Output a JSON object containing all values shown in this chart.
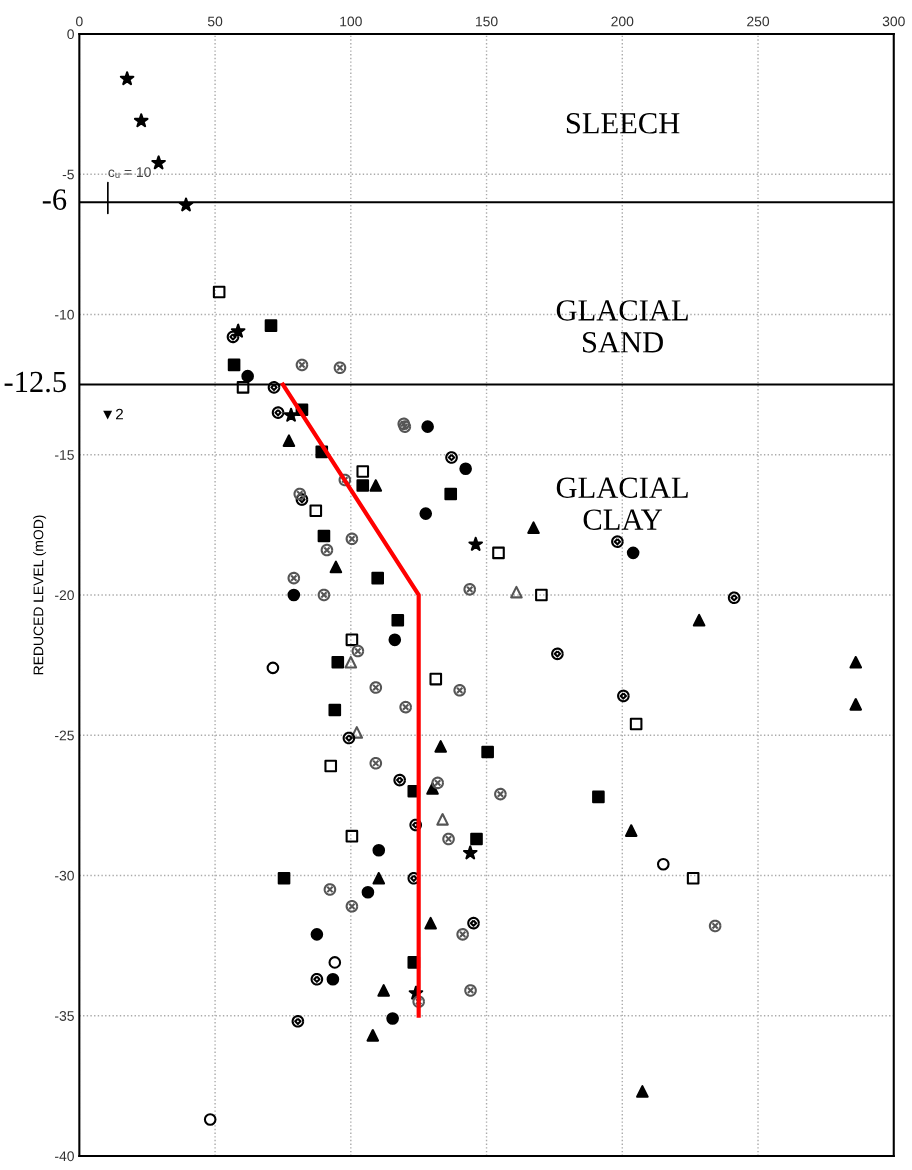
{
  "chart_data": {
    "type": "scatter",
    "ylabel": "REDUCED LEVEL (mOD)",
    "xlim": [
      0,
      300
    ],
    "xticks": [
      0,
      50,
      100,
      150,
      200,
      250,
      300
    ],
    "ylim": [
      -40,
      0
    ],
    "yticks": [
      0,
      -5,
      -10,
      -15,
      -20,
      -25,
      -30,
      -35,
      -40
    ],
    "grid": true,
    "series": [
      {
        "marker": "star",
        "color": "#000000",
        "x": [
          17.6,
          22.8,
          29.2,
          39.3,
          58.5,
          78,
          146,
          144,
          124
        ],
        "values": [
          -1.6,
          -3.1,
          -4.6,
          -6.1,
          -10.6,
          -13.6,
          -18.2,
          -29.2,
          -34.2
        ]
      },
      {
        "marker": "circle",
        "color": "#000000",
        "x": [
          62,
          128.3,
          142.3,
          127.6,
          204,
          79,
          116.2,
          110.3,
          106.3,
          87.5,
          93.4,
          115.4
        ],
        "values": [
          -12.2,
          -14.0,
          -15.5,
          -17.1,
          -18.5,
          -20.0,
          -21.6,
          -29.1,
          -30.6,
          -32.1,
          -33.7,
          -35.1
        ]
      },
      {
        "marker": "circle-open",
        "color": "#000000",
        "x": [
          71.3,
          94.1,
          48.2,
          215.1
        ],
        "values": [
          -22.6,
          -33.1,
          -38.7,
          -29.6
        ]
      },
      {
        "marker": "square-open",
        "color": "#000000",
        "x": [
          51.5,
          60.3,
          104.4,
          87.1,
          154.4,
          170.2,
          100.4,
          131.3,
          205.1,
          92.6,
          100.4,
          226.1
        ],
        "values": [
          -9.2,
          -12.6,
          -15.6,
          -17.0,
          -18.5,
          -20.0,
          -21.6,
          -23.0,
          -24.6,
          -26.1,
          -28.6,
          -30.1
        ]
      },
      {
        "marker": "triangle",
        "color": "#000000",
        "x": [
          77.2,
          109.2,
          94.5,
          167.3,
          228.3,
          286,
          286,
          133.1,
          130.1,
          110.3,
          129.4,
          112.1,
          108.1,
          203.3,
          207.4
        ],
        "values": [
          -14.5,
          -16.1,
          -19.0,
          -17.6,
          -20.9,
          -22.4,
          -23.9,
          -25.4,
          -26.9,
          -30.1,
          -31.7,
          -34.1,
          -35.7,
          -28.4,
          -37.7
        ]
      },
      {
        "marker": "triangle-open",
        "color": "#555555",
        "x": [
          100,
          161,
          133.8,
          102.2
        ],
        "values": [
          -22.4,
          -19.9,
          -28.0,
          -24.9
        ]
      },
      {
        "marker": "square",
        "color": "#000000",
        "x": [
          70.6,
          57,
          82,
          89.3,
          104.4,
          136.8,
          90.1,
          109.9,
          117.3,
          95.2,
          94.1,
          150.4,
          123.2,
          146.3,
          75.4,
          191.2,
          123.2
        ],
        "values": [
          -10.4,
          -11.8,
          -13.4,
          -14.9,
          -16.1,
          -16.4,
          -17.9,
          -19.4,
          -20.9,
          -22.4,
          -24.1,
          -25.6,
          -27.0,
          -28.7,
          -30.1,
          -27.2,
          -33.1
        ]
      },
      {
        "marker": "circle-diamond",
        "color": "#000000",
        "x": [
          56.6,
          71.7,
          73.2,
          137.1,
          82,
          198.2,
          241.2,
          176.1,
          200.4,
          99.3,
          118,
          123.9,
          123.2,
          145.2,
          87.5,
          80.5
        ],
        "values": [
          -10.8,
          -12.6,
          -13.5,
          -15.1,
          -16.6,
          -18.1,
          -20.1,
          -22.1,
          -23.6,
          -25.1,
          -26.6,
          -28.2,
          -30.1,
          -31.7,
          -33.7,
          -35.2
        ]
      },
      {
        "marker": "cross",
        "color": "#555555",
        "x": [
          96,
          119.5,
          100.4,
          90.1,
          120.2,
          136,
          234.2
        ],
        "values": [
          -11.9,
          -13.9,
          -18.0,
          -20.0,
          -24.0,
          -28.7,
          -31.8
        ]
      },
      {
        "marker": "cross",
        "color": "#555555",
        "x": [
          82,
          119.9,
          97.8,
          81.2,
          91.2,
          79,
          143.8,
          102.6,
          109.2,
          140.1,
          109.2,
          132,
          155.1,
          92.3,
          100.4,
          141.2,
          144.1,
          125
        ],
        "values": [
          -11.8,
          -14.0,
          -15.9,
          -16.4,
          -18.4,
          -19.4,
          -19.8,
          -22.0,
          -23.3,
          -23.4,
          -26.0,
          -26.7,
          -27.1,
          -30.5,
          -31.1,
          -32.1,
          -34.1,
          -34.5
        ]
      },
      {
        "type": "line",
        "marker": "none",
        "color": "#ff0000",
        "x": [
          75,
          125,
          125
        ],
        "values": [
          -12.5,
          -20,
          -35
        ]
      }
    ],
    "ref_lines": [
      {
        "axis": "y",
        "value": -6,
        "label": "-6",
        "color": "#000000"
      },
      {
        "axis": "y",
        "value": -12.5,
        "label": "-12.5",
        "color": "#000000"
      }
    ],
    "annotations": [
      "SLEECH",
      "GLACIAL\nSAND",
      "GLACIAL\nCLAY",
      "cᵤ = 10",
      "▼2"
    ]
  }
}
